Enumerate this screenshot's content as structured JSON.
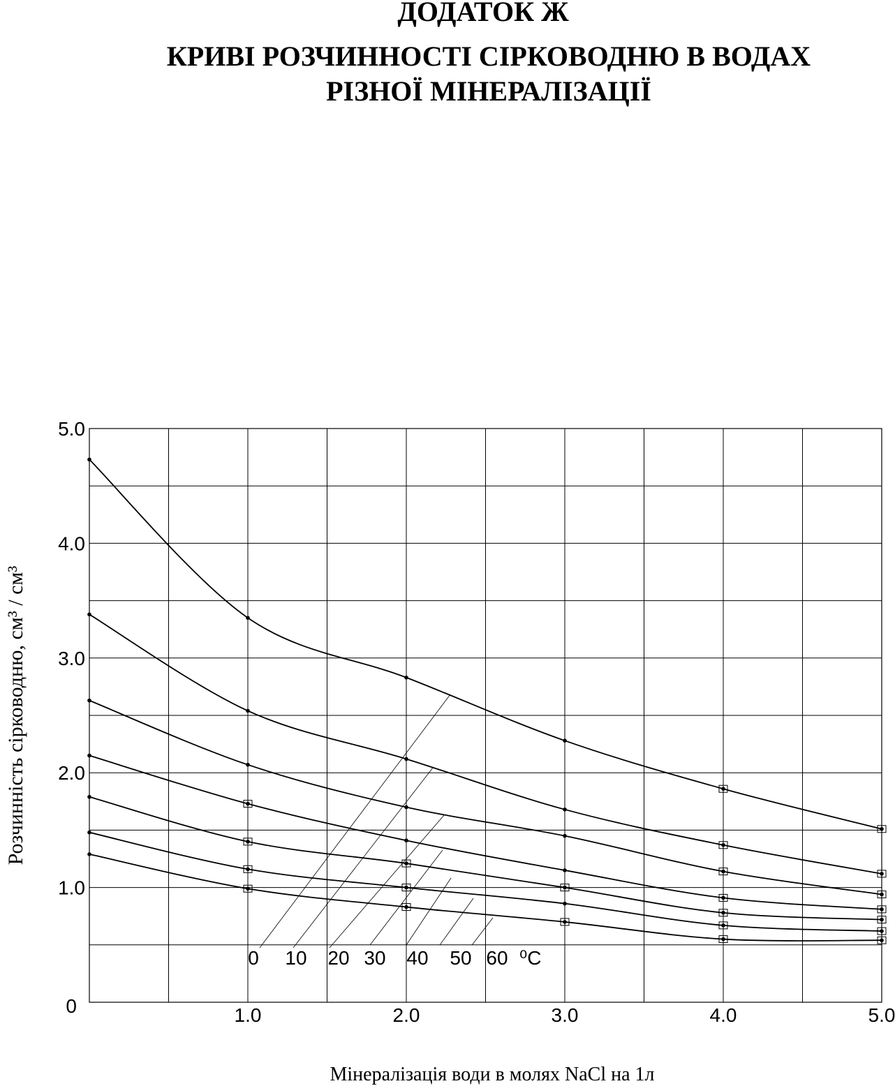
{
  "chart_data": {
    "type": "line",
    "heading": "ДОДАТОК  Ж",
    "title_line1": "КРИВІ РОЗЧИННОСТІ СІРКОВОДНЮ В ВОДАХ",
    "title_line2": "РІЗНОЇ МІНЕРАЛІЗАЦІЇ",
    "x_label": "Мінералізація води в молях NaCl на 1л",
    "y_label": "Розчинність сірководню, см³ / см³",
    "temperature_unit": "⁰C",
    "x": [
      0,
      1,
      2,
      3,
      4,
      5
    ],
    "xlim": [
      0,
      5
    ],
    "ylim": [
      0,
      5
    ],
    "xticks": [
      {
        "value": 1,
        "label": "1.0"
      },
      {
        "value": 2,
        "label": "2.0"
      },
      {
        "value": 3,
        "label": "3.0"
      },
      {
        "value": 4,
        "label": "4.0"
      },
      {
        "value": 5,
        "label": "5.0"
      }
    ],
    "yticks": [
      0,
      {
        "value": 1,
        "label": "1.0"
      },
      {
        "value": 2,
        "label": "2.0"
      },
      {
        "value": 3,
        "label": "3.0"
      },
      {
        "value": 4,
        "label": "4.0"
      },
      {
        "value": 5,
        "label": "5.0"
      }
    ],
    "xgrid": [
      0.5,
      1,
      1.5,
      2,
      2.5,
      3,
      3.5,
      4,
      4.5
    ],
    "ygrid": [
      0.5,
      1,
      1.5,
      2,
      2.5,
      3,
      3.5,
      4,
      4.5
    ],
    "grid": true,
    "series": [
      {
        "name": "0",
        "color": "#000000",
        "values": [
          4.73,
          3.35,
          2.83,
          2.28,
          1.86,
          1.51
        ],
        "markers": [
          "dot",
          "dot",
          "dot",
          "dot",
          "square",
          "square"
        ]
      },
      {
        "name": "10",
        "color": "#000000",
        "values": [
          3.38,
          2.54,
          2.12,
          1.68,
          1.37,
          1.12
        ],
        "markers": [
          "dot",
          "dot",
          "dot",
          "dot",
          "square",
          "square"
        ]
      },
      {
        "name": "20",
        "color": "#000000",
        "values": [
          2.63,
          2.07,
          1.7,
          1.45,
          1.14,
          0.94
        ],
        "markers": [
          "dot",
          "dot",
          "dot",
          "dot",
          "square",
          "square"
        ]
      },
      {
        "name": "30",
        "color": "#000000",
        "values": [
          2.15,
          1.73,
          1.41,
          1.15,
          0.91,
          0.81
        ],
        "markers": [
          "dot",
          "square",
          "dot",
          "dot",
          "square",
          "square"
        ]
      },
      {
        "name": "40",
        "color": "#000000",
        "values": [
          1.79,
          1.4,
          1.21,
          1.0,
          0.78,
          0.72
        ],
        "markers": [
          "dot",
          "square",
          "square",
          "square",
          "square",
          "square"
        ]
      },
      {
        "name": "50",
        "color": "#000000",
        "values": [
          1.48,
          1.16,
          1.0,
          0.86,
          0.67,
          0.62
        ],
        "markers": [
          "dot",
          "square",
          "square",
          "dot",
          "square",
          "square"
        ]
      },
      {
        "name": "60",
        "color": "#000000",
        "values": [
          1.29,
          0.99,
          0.83,
          0.7,
          0.55,
          0.54
        ],
        "markers": [
          "dot",
          "square",
          "square",
          "square",
          "square",
          "square"
        ]
      }
    ]
  }
}
